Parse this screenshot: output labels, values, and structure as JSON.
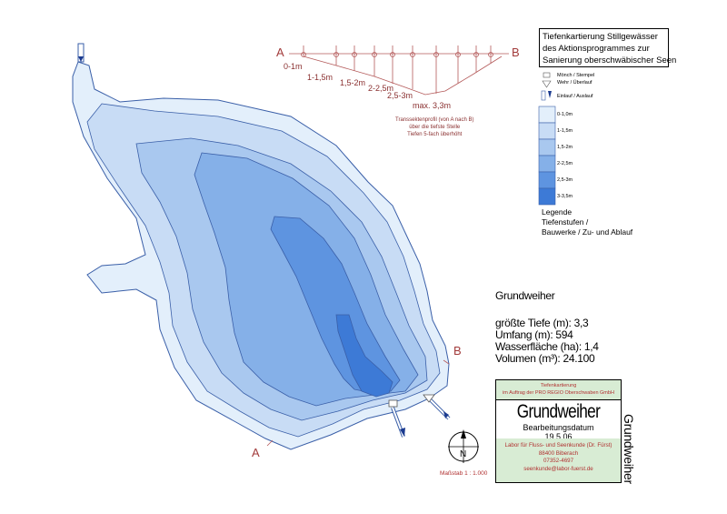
{
  "title_lines": [
    "Tiefenkartierung Stillgewässer",
    "des Aktionsprogrammes zur",
    "Sanierung oberschwäbischer Seen"
  ],
  "legend": {
    "symbols": [
      {
        "label": "Mönch / Stempel",
        "icon": "moench-icon"
      },
      {
        "label": "Wehr / Überlauf",
        "icon": "wehr-icon"
      },
      {
        "label": "Einlauf / Auslauf",
        "icon": "einlauf-auslauf-icon"
      }
    ],
    "depth_classes": [
      {
        "label": "0-1,0m",
        "color": "#e3effb"
      },
      {
        "label": "1-1,5m",
        "color": "#c8dcf5"
      },
      {
        "label": "1,5-2m",
        "color": "#a9c8ef"
      },
      {
        "label": "2-2,5m",
        "color": "#85b0e8"
      },
      {
        "label": "2,5-3m",
        "color": "#5e94e0"
      },
      {
        "label": "3-3,5m",
        "color": "#3d7ad6"
      }
    ],
    "caption_lines": [
      "Legende",
      "Tiefenstufen /",
      "Bauwerke / Zu- und Ablauf"
    ]
  },
  "profile": {
    "start": "A",
    "end": "B",
    "depth_labels": [
      "0-1m",
      "1-1,5m",
      "1,5-2m",
      "2-2,5m",
      "2,5-3m",
      "max. 3,3m"
    ],
    "note_lines": [
      "Transsektenprofil (von A nach B)",
      "über die tiefste Stelle",
      "Tiefen 5-fach überhöht"
    ]
  },
  "map_labels": {
    "a": "A",
    "b": "B",
    "north": "N"
  },
  "info": {
    "name": "Grundweiher",
    "lines": [
      "größte Tiefe (m): 3,3",
      "Umfang (m): 594",
      "Wasserfläche (ha): 1,4",
      "Volumen (m³): 24.100"
    ]
  },
  "title_block": {
    "top_lines": [
      "Tiefenkartierung",
      "im Auftrag der PRO REGIO Oberschwaben GmbH"
    ],
    "name": "Grundweiher",
    "date_label": "Bearbeitungsdatum",
    "date": "19.5.06",
    "bottom_lines": [
      "Labor für Fluss- und Seenkunde (Dr. Fürst)",
      "88400 Biberach",
      "07352-4697",
      "seenkunde@labor-fuerst.de"
    ]
  },
  "scale": "Maßstab 1 : 1.000",
  "vertical_title": "Grundweiher",
  "colors": {
    "accent_red": "#a23b3b",
    "outline": "#3a5fa8"
  }
}
